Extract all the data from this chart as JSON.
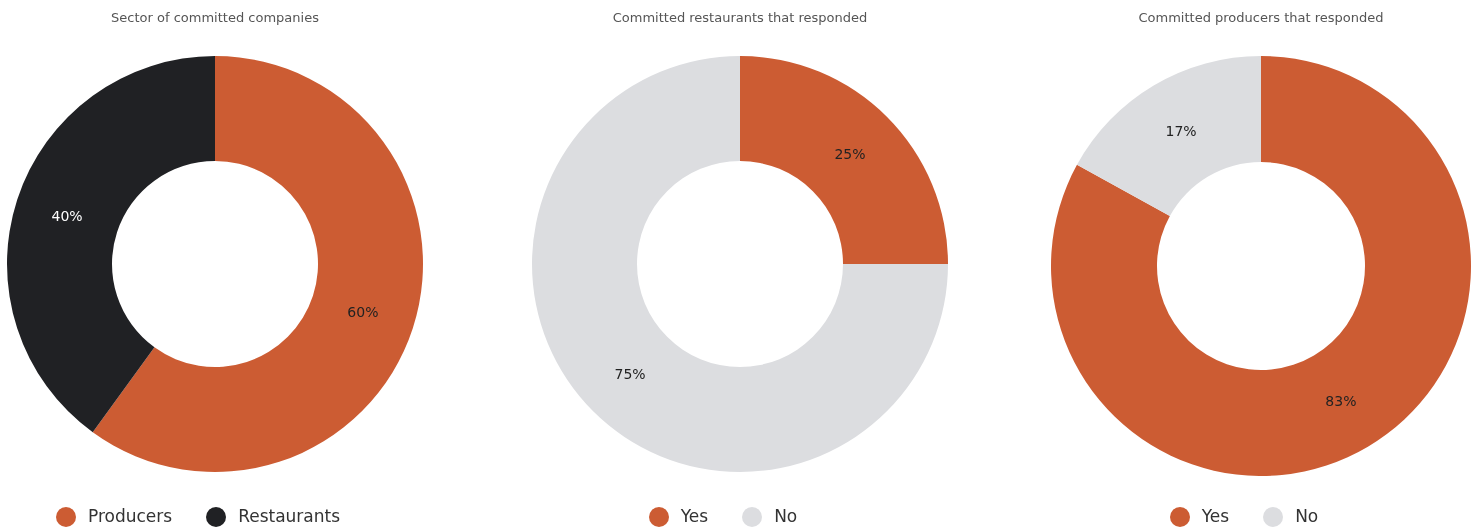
{
  "chart_data": [
    {
      "type": "donut",
      "title": "Sector of committed companies",
      "categories": [
        "Producers",
        "Restaurants"
      ],
      "values": [
        60,
        40
      ],
      "value_labels": [
        "60%",
        "40%"
      ],
      "colors": [
        "#cc5c33",
        "#202124"
      ],
      "legend": "bottom"
    },
    {
      "type": "donut",
      "title": "Committed restaurants that responded",
      "categories": [
        "Yes",
        "No"
      ],
      "values": [
        25,
        75
      ],
      "value_labels": [
        "25%",
        "75%"
      ],
      "colors": [
        "#cc5c33",
        "#dcdde0"
      ],
      "legend": "bottom"
    },
    {
      "type": "donut",
      "title": "Committed producers that responded",
      "categories": [
        "Yes",
        "No"
      ],
      "values": [
        83,
        17
      ],
      "value_labels": [
        "83%",
        "17%"
      ],
      "colors": [
        "#cc5c33",
        "#dcdde0"
      ],
      "legend": "bottom"
    }
  ]
}
